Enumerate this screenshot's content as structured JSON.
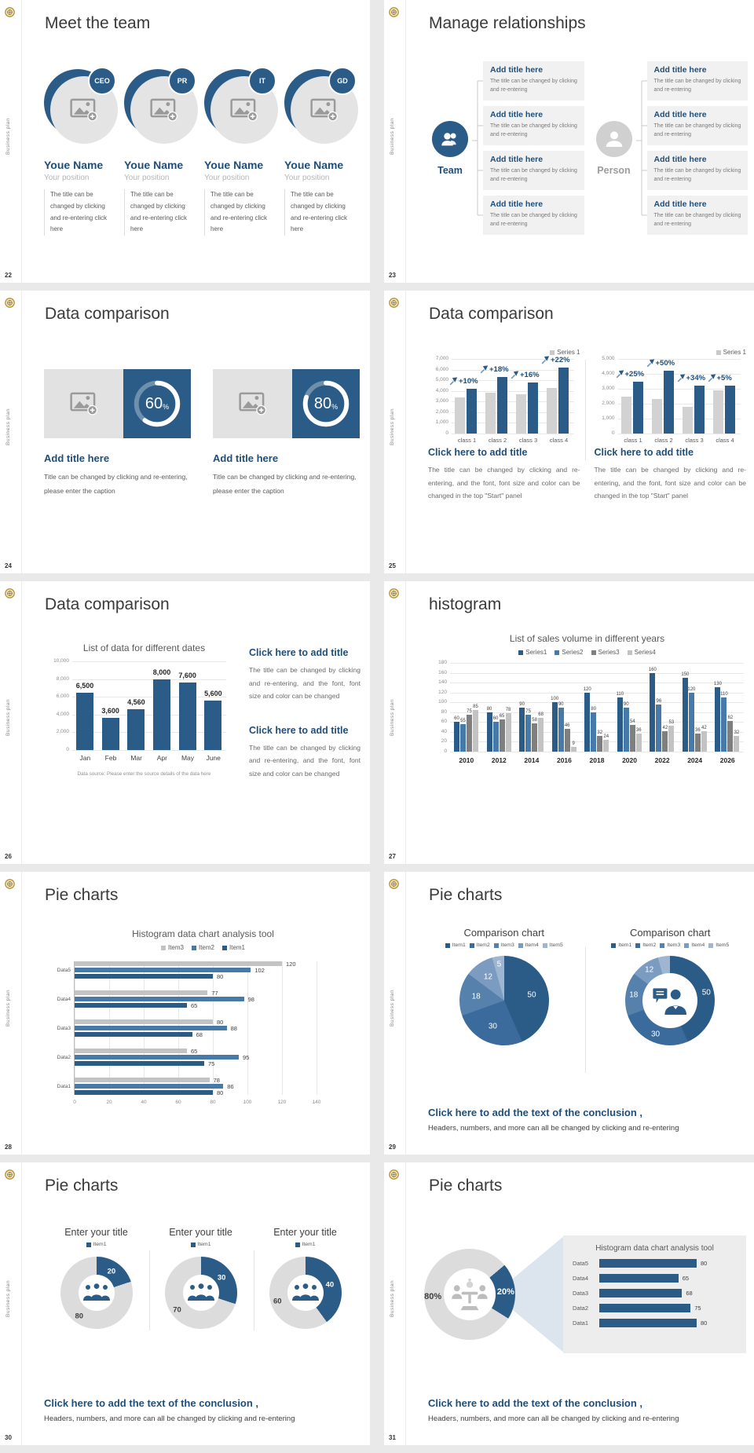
{
  "global": {
    "sidebar_text": "Business plan",
    "emblem": "gold-crest-logo"
  },
  "colors": {
    "navy": "#1f4e79",
    "bar_blue": "#2b5c87",
    "steel_blue": "#4779a9",
    "gray_bar": "#d2d2d2",
    "dark_gray_bar": "#7f7f7f",
    "light_gray_bar": "#c3c3c3",
    "box_gray": "#f1f1f1",
    "donut_gray": "#dcdcdc",
    "gold": "#b89434",
    "pie_palette": [
      "#2b5c87",
      "#3a6b9c",
      "#5681ac",
      "#7b9cc0",
      "#9fb6d2"
    ]
  },
  "slides": [
    {
      "page": "22",
      "title": "Meet the team",
      "badges": [
        "CEO",
        "PR",
        "IT",
        "GD"
      ],
      "member_name": "Youe Name",
      "member_position": "Your position",
      "member_text": "The title can be changed by clicking and re-entering click here"
    },
    {
      "page": "23",
      "title": "Manage relationships",
      "groups": [
        {
          "label": "Team",
          "style": "blue"
        },
        {
          "label": "Person",
          "style": "gray"
        }
      ],
      "item_title": "Add title here",
      "item_text": "The title can be changed by clicking and re-entering"
    },
    {
      "page": "24",
      "title": "Data comparison",
      "items": [
        {
          "percent": 60
        },
        {
          "percent": 80
        }
      ],
      "item_title": "Add title here",
      "item_text": "Title can be changed by clicking and re-entering, please enter the caption"
    },
    {
      "page": "25",
      "title": "Data comparison",
      "caption_title": "Click here to add title",
      "caption_text": "The title can be changed by clicking and re-entering, and the font, font size and color can be changed in the top \"Start\" panel"
    },
    {
      "page": "26",
      "title": "Data comparison",
      "caption_title": "Click here to add title",
      "caption_text": "The title can be changed by clicking and re-entering, and the font, font size and color can be changed"
    },
    {
      "page": "27",
      "title": "histogram"
    },
    {
      "page": "28",
      "title": "Pie charts"
    },
    {
      "page": "29",
      "title": "Pie charts",
      "conclusion_title": "Click here to add the text of the conclusion ,",
      "conclusion_text": "Headers, numbers, and more can all be changed by clicking and re-entering"
    },
    {
      "page": "30",
      "title": "Pie charts",
      "conclusion_title": "Click here to add the text of the conclusion ,",
      "conclusion_text": "Headers, numbers, and more can all be changed by clicking and re-entering"
    },
    {
      "page": "31",
      "title": "Pie charts",
      "conclusion_title": "Click here to add the text of the conclusion ,",
      "conclusion_text": "Headers, numbers, and more can all be changed by clicking and re-entering"
    }
  ],
  "chart_data": [
    {
      "id": "c25a",
      "type": "bar",
      "legend": [
        "Series 1"
      ],
      "categories": [
        "class 1",
        "class 2",
        "class 3",
        "class 4"
      ],
      "series": [
        {
          "name": "baseline",
          "values": [
            3400,
            3800,
            3700,
            4300
          ]
        },
        {
          "name": "Series 1",
          "values": [
            4200,
            5300,
            4800,
            6200
          ]
        }
      ],
      "growth_labels": [
        "+10%",
        "+18%",
        "+16%",
        "+22%"
      ],
      "ylim": [
        0,
        7000
      ],
      "yticks": [
        "7,000",
        "6,000",
        "5,000",
        "4,000",
        "3,000",
        "2,000",
        "1,000",
        "0"
      ]
    },
    {
      "id": "c25b",
      "type": "bar",
      "legend": [
        "Series 1"
      ],
      "categories": [
        "class 1",
        "class 2",
        "class 3",
        "class 4"
      ],
      "series": [
        {
          "name": "baseline",
          "values": [
            2500,
            2300,
            1800,
            2900
          ]
        },
        {
          "name": "Series 1",
          "values": [
            3500,
            4200,
            3200,
            3200
          ]
        }
      ],
      "growth_labels": [
        "+25%",
        "+50%",
        "+34%",
        "+5%"
      ],
      "ylim": [
        0,
        5000
      ],
      "yticks": [
        "5,000",
        "4,000",
        "3,000",
        "2,000",
        "1,000",
        "0"
      ]
    },
    {
      "id": "c26",
      "type": "bar",
      "title": "List of data for different dates",
      "categories": [
        "Jan",
        "Feb",
        "Mar",
        "Apr",
        "May",
        "June"
      ],
      "values": [
        6500,
        3600,
        4560,
        8000,
        7600,
        5600
      ],
      "value_labels": [
        "6,500",
        "3,600",
        "4,560",
        "8,000",
        "7,600",
        "5,600"
      ],
      "ylim": [
        0,
        10000
      ],
      "yticks": [
        "10,000",
        "8,000",
        "6,000",
        "4,000",
        "2,000",
        "0"
      ],
      "footnote": "Data source: Please enter the source details of the data here"
    },
    {
      "id": "c27",
      "type": "bar",
      "title": "List of sales volume in different years",
      "legend": [
        "Series1",
        "Series2",
        "Series3",
        "Series4"
      ],
      "categories": [
        "2010",
        "2012",
        "2014",
        "2016",
        "2018",
        "2020",
        "2022",
        "2024",
        "2026"
      ],
      "series": [
        {
          "name": "Series1",
          "values": [
            60,
            80,
            90,
            100,
            120,
            110,
            160,
            150,
            130
          ]
        },
        {
          "name": "Series2",
          "values": [
            55,
            60,
            75,
            90,
            80,
            90,
            96,
            120,
            110
          ]
        },
        {
          "name": "Series3",
          "values": [
            75,
            65,
            58,
            46,
            32,
            54,
            42,
            36,
            62
          ]
        },
        {
          "name": "Series4",
          "values": [
            85,
            78,
            68,
            9,
            24,
            36,
            53,
            42,
            32
          ]
        }
      ],
      "ylim": [
        0,
        180
      ],
      "yticks": [
        "180",
        "160",
        "140",
        "120",
        "100",
        "80",
        "60",
        "40",
        "20",
        "0"
      ]
    },
    {
      "id": "c28",
      "type": "bar",
      "orientation": "horizontal",
      "title": "Histogram data chart analysis tool",
      "legend": [
        "Item3",
        "Item2",
        "Item1"
      ],
      "categories": [
        "Data5",
        "Data4",
        "Data3",
        "Data2",
        "Data1"
      ],
      "series": [
        {
          "name": "Item3",
          "values": [
            120,
            77,
            80,
            65,
            78
          ]
        },
        {
          "name": "Item2",
          "values": [
            102,
            98,
            88,
            95,
            86
          ]
        },
        {
          "name": "Item1",
          "values": [
            80,
            65,
            68,
            75,
            80
          ]
        }
      ],
      "xlim": [
        0,
        140
      ],
      "xticks": [
        "0",
        "20",
        "40",
        "60",
        "80",
        "100",
        "120",
        "140"
      ]
    },
    {
      "id": "c29a",
      "type": "pie",
      "title": "Comparison chart",
      "legend": [
        "Item1",
        "Item2",
        "Item3",
        "Item4",
        "Item5"
      ],
      "values": [
        50,
        30,
        18,
        12,
        5
      ]
    },
    {
      "id": "c29b",
      "type": "donut",
      "title": "Comparison chart",
      "legend": [
        "Item1",
        "Item2",
        "Item3",
        "Item4",
        "Item5"
      ],
      "values": [
        50,
        30,
        18,
        12,
        5
      ],
      "center_icon": "business-person"
    },
    {
      "id": "c30",
      "type": "donut-group",
      "titles": [
        "Enter your title",
        "Enter your title",
        "Enter your title"
      ],
      "legend": [
        "Item1"
      ],
      "donuts": [
        {
          "blue": 20,
          "gray": 80
        },
        {
          "blue": 30,
          "gray": 70
        },
        {
          "blue": 40,
          "gray": 60
        }
      ],
      "center_icon": "people-group"
    },
    {
      "id": "c31",
      "type": "donut",
      "values": [
        80,
        20
      ],
      "labels": [
        "80%",
        "20%"
      ],
      "center_icon": "meeting-group",
      "detail_title": "Histogram data chart analysis tool",
      "detail_categories": [
        "Data5",
        "Data4",
        "Data3",
        "Data2",
        "Data1"
      ],
      "detail_values": [
        80,
        65,
        68,
        75,
        80
      ]
    }
  ]
}
